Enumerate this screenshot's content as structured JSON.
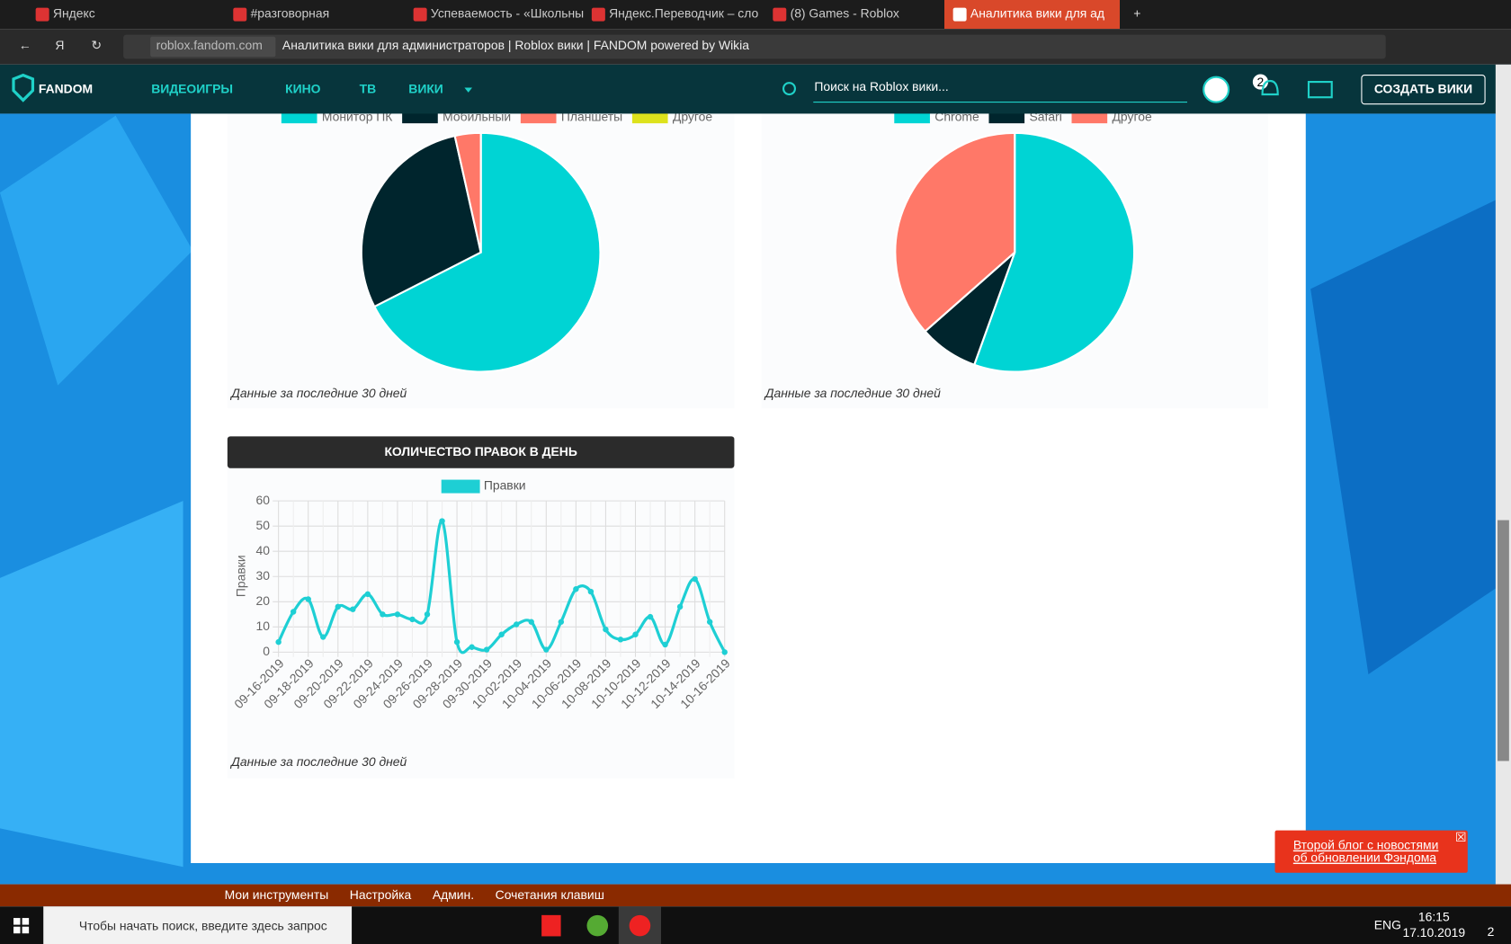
{
  "browser": {
    "tabs": [
      "Яндекс",
      "#разговорная",
      "Успеваемость - «Школьны",
      "Яндекс.Переводчик – сло",
      "(8) Games - Roblox",
      "Аналитика вики для ад"
    ],
    "url_host": "roblox.fandom.com",
    "page_title": "Аналитика вики для администраторов | Roblox вики | FANDOM powered by Wikia"
  },
  "nav": {
    "logo": "FANDOM",
    "links": [
      "ВИДЕОИГРЫ",
      "КИНО",
      "ТВ",
      "ВИКИ"
    ],
    "search": "Поиск на Roblox вики...",
    "notifications": "2",
    "create": "СОЗДАТЬ ВИКИ"
  },
  "charts": [
    {
      "type": "pie",
      "categories": [
        "Монитор ПК",
        "Мобильный",
        "Планшеты",
        "Другое"
      ],
      "values": [
        67.5,
        29,
        3.5,
        0
      ],
      "colors": [
        "#00d4d4",
        "#00252d",
        "#ff7868",
        "#dde21c"
      ],
      "note": "Данные за последние 30 дней"
    },
    {
      "type": "pie",
      "categories": [
        "Chrome",
        "Safari",
        "Другое"
      ],
      "values": [
        55.5,
        8,
        36.5
      ],
      "colors": [
        "#00d4d4",
        "#00252d",
        "#ff7868"
      ],
      "note": "Данные за последние 30 дней"
    },
    {
      "type": "line",
      "title": "КОЛИЧЕСТВО ПРАВОК В ДЕНЬ",
      "y_label": "Правки",
      "categories": [
        "09-16-2019",
        null,
        "09-18-2019",
        null,
        "09-20-2019",
        null,
        "09-22-2019",
        null,
        "09-24-2019",
        null,
        "09-26-2019",
        null,
        "09-28-2019",
        null,
        "09-30-2019",
        null,
        "10-02-2019",
        null,
        "10-04-2019",
        null,
        "10-06-2019",
        null,
        "10-08-2019",
        null,
        "10-10-2019",
        null,
        "10-12-2019",
        null,
        "10-14-2019",
        null,
        "10-16-2019"
      ],
      "series": [
        {
          "name": "Правки",
          "color": "#1ecfd4",
          "values": [
            4,
            16,
            21,
            6,
            18,
            17,
            23,
            15,
            15,
            13,
            15,
            52,
            4,
            2,
            1,
            7,
            11,
            12,
            1,
            12,
            25,
            24,
            9,
            5,
            7,
            14,
            3,
            18,
            29,
            12,
            0
          ]
        }
      ],
      "ylim": [
        0,
        60
      ],
      "yticks": [
        0,
        10,
        20,
        30,
        40,
        50,
        60
      ],
      "grid": true,
      "note": "Данные за последние 30 дней"
    }
  ],
  "toolbar": [
    "Мои инструменты",
    "Настройка",
    "Админ.",
    "Сочетания клавиш"
  ],
  "notification": "Второй блог с новостями об обновлении Фэндома",
  "taskbar": {
    "search": "Чтобы начать поиск, введите здесь запрос",
    "lang": "ENG",
    "time": "16:15",
    "date": "17.10.2019",
    "badge": "2"
  }
}
